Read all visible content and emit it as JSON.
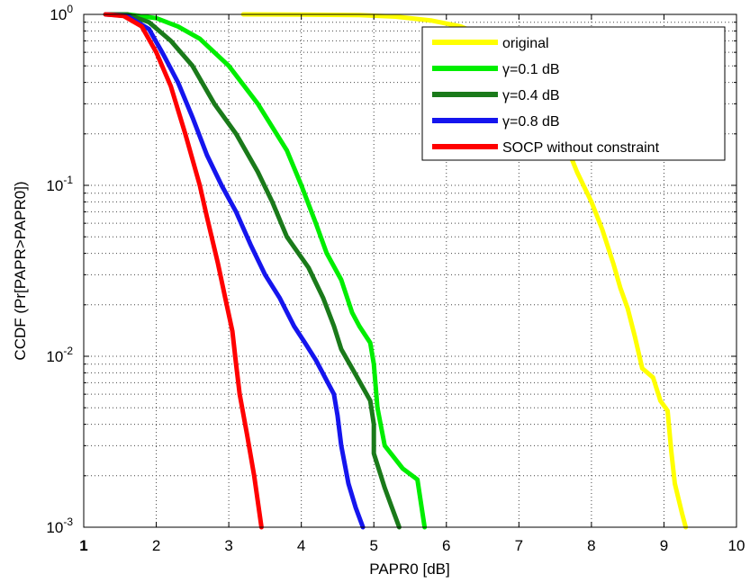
{
  "chart_data": {
    "type": "line",
    "xlabel": "PAPR0 [dB]",
    "ylabel": "CCDF (Pr[PAPR>PAPR0])",
    "xlim": [
      1,
      10
    ],
    "ylim": [
      0.001,
      1
    ],
    "yscale": "log",
    "grid": true,
    "legend_position": "top-right",
    "x_ticks": [
      1,
      2,
      3,
      4,
      5,
      6,
      7,
      8,
      9,
      10
    ],
    "y_ticks": [
      {
        "value": 1,
        "base": "10",
        "exp": "0"
      },
      {
        "value": 0.1,
        "base": "10",
        "exp": "-1"
      },
      {
        "value": 0.01,
        "base": "10",
        "exp": "-2"
      },
      {
        "value": 0.001,
        "base": "10",
        "exp": "-3"
      }
    ],
    "series": [
      {
        "name": "original",
        "color": "#ffff00",
        "points": [
          [
            3.2,
            1
          ],
          [
            4.0,
            0.998
          ],
          [
            4.8,
            0.99
          ],
          [
            5.3,
            0.97
          ],
          [
            5.8,
            0.92
          ],
          [
            6.2,
            0.85
          ],
          [
            6.6,
            0.72
          ],
          [
            7.0,
            0.55
          ],
          [
            7.3,
            0.4
          ],
          [
            7.5,
            0.25
          ],
          [
            7.8,
            0.12
          ],
          [
            8.0,
            0.08
          ],
          [
            8.15,
            0.055
          ],
          [
            8.3,
            0.035
          ],
          [
            8.4,
            0.025
          ],
          [
            8.5,
            0.019
          ],
          [
            8.6,
            0.013
          ],
          [
            8.7,
            0.0085
          ],
          [
            8.85,
            0.0075
          ],
          [
            8.95,
            0.0055
          ],
          [
            9.05,
            0.0048
          ],
          [
            9.1,
            0.0028
          ],
          [
            9.15,
            0.0018
          ],
          [
            9.25,
            0.0012
          ],
          [
            9.3,
            0.001
          ]
        ]
      },
      {
        "name": "γ=0.1      dB",
        "color": "#00ee00",
        "points": [
          [
            1.3,
            1
          ],
          [
            1.6,
            1
          ],
          [
            2.0,
            0.95
          ],
          [
            2.3,
            0.85
          ],
          [
            2.6,
            0.72
          ],
          [
            3.0,
            0.5
          ],
          [
            3.4,
            0.3
          ],
          [
            3.8,
            0.16
          ],
          [
            4.0,
            0.1
          ],
          [
            4.2,
            0.06
          ],
          [
            4.35,
            0.04
          ],
          [
            4.55,
            0.028
          ],
          [
            4.7,
            0.018
          ],
          [
            4.8,
            0.015
          ],
          [
            4.95,
            0.012
          ],
          [
            5.0,
            0.009
          ],
          [
            5.05,
            0.005
          ],
          [
            5.15,
            0.003
          ],
          [
            5.4,
            0.0022
          ],
          [
            5.6,
            0.0019
          ],
          [
            5.7,
            0.001
          ]
        ]
      },
      {
        "name": "γ=0.4      dB",
        "color": "#1a7a1a",
        "points": [
          [
            1.3,
            1
          ],
          [
            1.6,
            1
          ],
          [
            1.9,
            0.9
          ],
          [
            2.2,
            0.7
          ],
          [
            2.5,
            0.5
          ],
          [
            2.8,
            0.3
          ],
          [
            3.1,
            0.2
          ],
          [
            3.4,
            0.12
          ],
          [
            3.6,
            0.08
          ],
          [
            3.8,
            0.05
          ],
          [
            4.1,
            0.033
          ],
          [
            4.3,
            0.022
          ],
          [
            4.45,
            0.015
          ],
          [
            4.55,
            0.011
          ],
          [
            4.75,
            0.0078
          ],
          [
            4.95,
            0.0055
          ],
          [
            5.0,
            0.004
          ],
          [
            5.0,
            0.0027
          ],
          [
            5.15,
            0.0017
          ],
          [
            5.25,
            0.0013
          ],
          [
            5.35,
            0.001
          ]
        ]
      },
      {
        "name": "γ=0.8      dB",
        "color": "#1515ee",
        "points": [
          [
            1.3,
            1
          ],
          [
            1.6,
            0.98
          ],
          [
            1.9,
            0.82
          ],
          [
            2.1,
            0.58
          ],
          [
            2.3,
            0.4
          ],
          [
            2.5,
            0.25
          ],
          [
            2.7,
            0.15
          ],
          [
            2.9,
            0.1
          ],
          [
            3.1,
            0.07
          ],
          [
            3.3,
            0.045
          ],
          [
            3.5,
            0.03
          ],
          [
            3.7,
            0.022
          ],
          [
            3.9,
            0.015
          ],
          [
            4.05,
            0.012
          ],
          [
            4.2,
            0.0095
          ],
          [
            4.35,
            0.0072
          ],
          [
            4.45,
            0.006
          ],
          [
            4.5,
            0.0045
          ],
          [
            4.55,
            0.003
          ],
          [
            4.65,
            0.0018
          ],
          [
            4.75,
            0.0013
          ],
          [
            4.85,
            0.001
          ]
        ]
      },
      {
        "name": "SOCP without constraint",
        "color": "#ff0000",
        "points": [
          [
            1.3,
            1
          ],
          [
            1.55,
            0.98
          ],
          [
            1.8,
            0.85
          ],
          [
            2.0,
            0.6
          ],
          [
            2.2,
            0.38
          ],
          [
            2.4,
            0.2
          ],
          [
            2.6,
            0.1
          ],
          [
            2.7,
            0.065
          ],
          [
            2.85,
            0.035
          ],
          [
            2.95,
            0.022
          ],
          [
            3.05,
            0.014
          ],
          [
            3.1,
            0.009
          ],
          [
            3.15,
            0.006
          ],
          [
            3.25,
            0.0035
          ],
          [
            3.35,
            0.002
          ],
          [
            3.45,
            0.001
          ]
        ]
      }
    ]
  }
}
